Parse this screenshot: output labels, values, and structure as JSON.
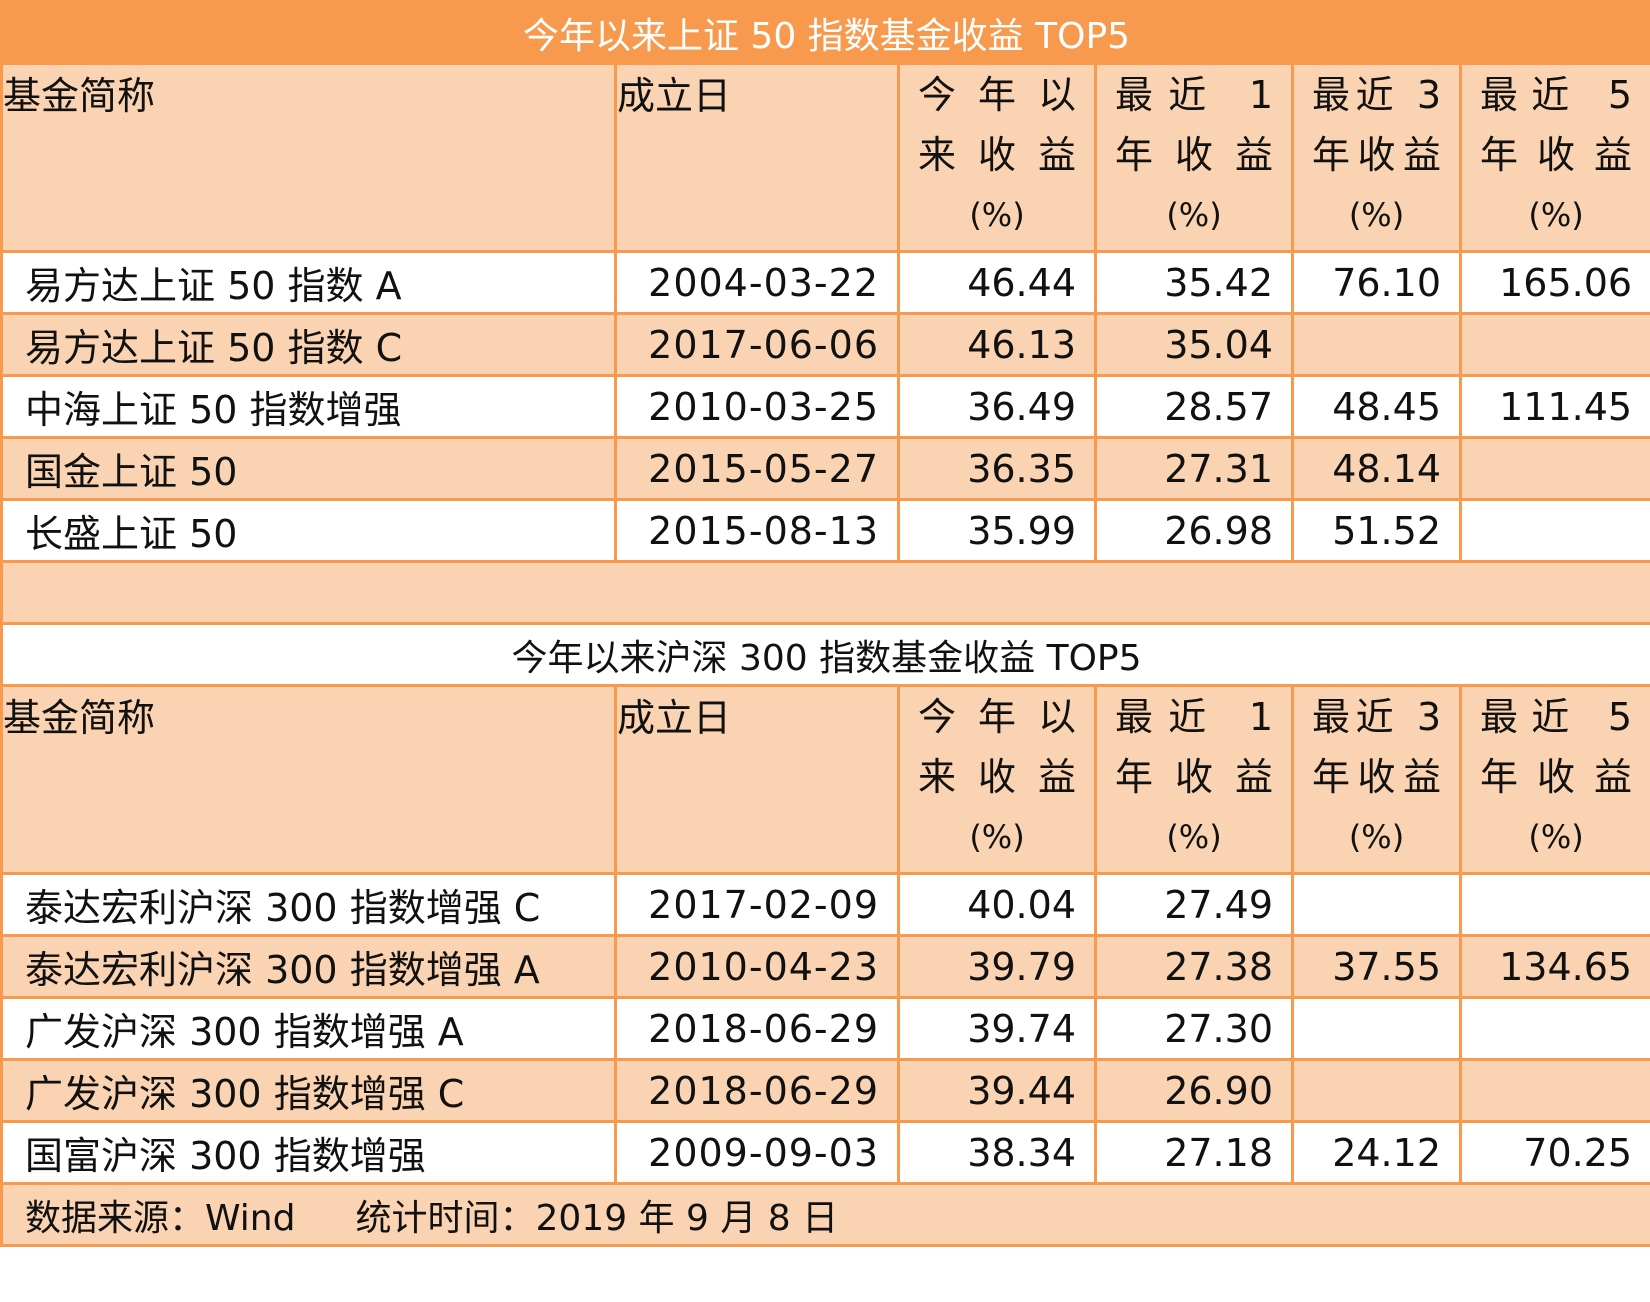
{
  "table1": {
    "title": "今年以来上证 50 指数基金收益 TOP5",
    "headers": {
      "name": "基金简称",
      "date": "成立日",
      "ytd": [
        "今年以",
        "来收益",
        "(%)"
      ],
      "y1": [
        "最近 1",
        "年收益",
        "(%)"
      ],
      "y3": [
        "最近 3",
        "年收益",
        "(%)"
      ],
      "y5": [
        "最近 5",
        "年收益",
        "(%)"
      ]
    },
    "rows": [
      {
        "name": "易方达上证 50 指数 A",
        "date": "2004-03-22",
        "ytd": "46.44",
        "y1": "35.42",
        "y3": "76.10",
        "y5": "165.06"
      },
      {
        "name": "易方达上证 50 指数 C",
        "date": "2017-06-06",
        "ytd": "46.13",
        "y1": "35.04",
        "y3": "",
        "y5": ""
      },
      {
        "name": "中海上证 50 指数增强",
        "date": "2010-03-25",
        "ytd": "36.49",
        "y1": "28.57",
        "y3": "48.45",
        "y5": "111.45"
      },
      {
        "name": "国金上证 50",
        "date": "2015-05-27",
        "ytd": "36.35",
        "y1": "27.31",
        "y3": "48.14",
        "y5": ""
      },
      {
        "name": "长盛上证 50",
        "date": "2015-08-13",
        "ytd": "35.99",
        "y1": "26.98",
        "y3": "51.52",
        "y5": ""
      }
    ]
  },
  "table2": {
    "title": "今年以来沪深 300 指数基金收益 TOP5",
    "headers": {
      "name": "基金简称",
      "date": "成立日",
      "ytd": [
        "今年以",
        "来收益",
        "(%)"
      ],
      "y1": [
        "最近 1",
        "年收益",
        "(%)"
      ],
      "y3": [
        "最近 3",
        "年收益",
        "(%)"
      ],
      "y5": [
        "最近 5",
        "年收益",
        "(%)"
      ]
    },
    "rows": [
      {
        "name": "泰达宏利沪深 300 指数增强 C",
        "date": "2017-02-09",
        "ytd": "40.04",
        "y1": "27.49",
        "y3": "",
        "y5": ""
      },
      {
        "name": "泰达宏利沪深 300 指数增强 A",
        "date": "2010-04-23",
        "ytd": "39.79",
        "y1": "27.38",
        "y3": "37.55",
        "y5": "134.65"
      },
      {
        "name": "广发沪深 300 指数增强 A",
        "date": "2018-06-29",
        "ytd": "39.74",
        "y1": "27.30",
        "y3": "",
        "y5": ""
      },
      {
        "name": "广发沪深 300 指数增强 C",
        "date": "2018-06-29",
        "ytd": "39.44",
        "y1": "26.90",
        "y3": "",
        "y5": ""
      },
      {
        "name": "国富沪深 300 指数增强",
        "date": "2009-09-03",
        "ytd": "38.34",
        "y1": "27.18",
        "y3": "24.12",
        "y5": "70.25"
      }
    ]
  },
  "footer": {
    "source": "数据来源：Wind",
    "time": "统计时间：2019 年 9 月 8 日"
  }
}
